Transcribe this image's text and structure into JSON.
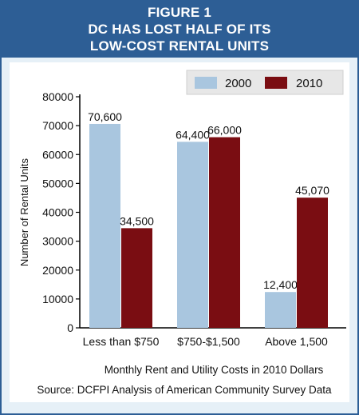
{
  "header": {
    "figure_label": "FIGURE 1",
    "title_line1": "DC HAS LOST HALF OF ITS",
    "title_line2": "LOW-COST RENTAL UNITS"
  },
  "colors": {
    "header_bg": "#2d5e95",
    "frame_bg": "#e6f0f7",
    "series_2000": "#a9c6df",
    "series_2010": "#7a0d12"
  },
  "chart_data": {
    "type": "bar",
    "categories": [
      "Less than $750",
      "$750-$1,500",
      "Above 1,500"
    ],
    "series": [
      {
        "name": "2000",
        "values": [
          70600,
          64400,
          12400
        ],
        "labels": [
          "70,600",
          "64,400",
          "12,400"
        ]
      },
      {
        "name": "2010",
        "values": [
          34500,
          66000,
          45070
        ],
        "labels": [
          "34,500",
          "66,000",
          "45,070"
        ]
      }
    ],
    "ylabel": "Number of Rental Units",
    "xlabel": "Monthly Rent and Utility Costs in 2010 Dollars",
    "ylim": [
      0,
      80000
    ],
    "yticks": [
      0,
      10000,
      20000,
      30000,
      40000,
      50000,
      60000,
      70000,
      80000
    ],
    "ytick_labels": [
      "0",
      "10000",
      "20000",
      "30000",
      "40000",
      "50000",
      "60000",
      "70000",
      "80000"
    ],
    "legend_position": "top-right",
    "grid": false,
    "source": "Source: DCFPI Analysis of American Community Survey Data"
  }
}
